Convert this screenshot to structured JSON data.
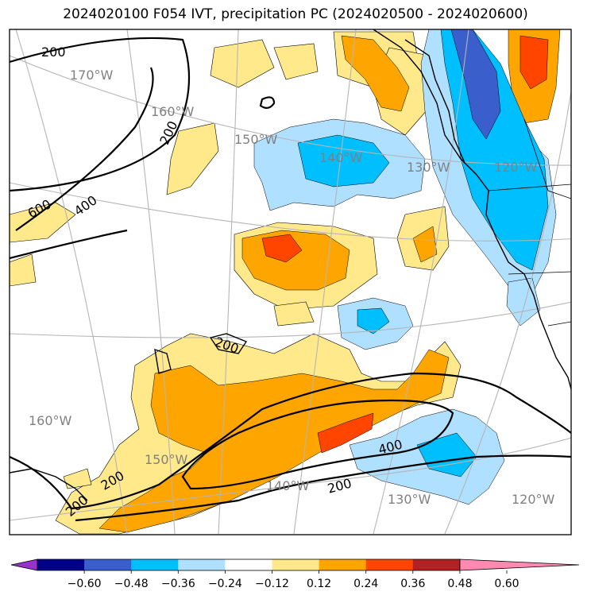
{
  "title": "2024020100 F054 IVT, precipitation PC (2024020500 - 2024020600)",
  "longitude_labels": [
    "170°W",
    "160°W",
    "150°W",
    "140°W",
    "130°W",
    "120°W",
    "160°W",
    "150°W",
    "140°W",
    "130°W",
    "120°W"
  ],
  "ivt_contour_labels": [
    "200",
    "200",
    "600",
    "400",
    "200",
    "400",
    "200",
    "200",
    "200"
  ],
  "colorbar": {
    "colors": [
      "#9932CC",
      "#00008B",
      "#3A5FCD",
      "#00BFFF",
      "#B0E0FF",
      "#FFFFFF",
      "#FFE98A",
      "#FFA500",
      "#FF4500",
      "#B22222",
      "#FF89B0"
    ],
    "ticks": [
      "−0.60",
      "−0.48",
      "−0.36",
      "−0.24",
      "−0.12",
      "0.12",
      "0.24",
      "0.36",
      "0.48",
      "0.60"
    ]
  },
  "fill_colors": {
    "light_orange": "#FFE98A",
    "orange": "#FFA500",
    "red_orange": "#FF4500",
    "light_blue": "#B0E0FF",
    "blue": "#00BFFF",
    "royal_blue": "#3A5FCD"
  }
}
